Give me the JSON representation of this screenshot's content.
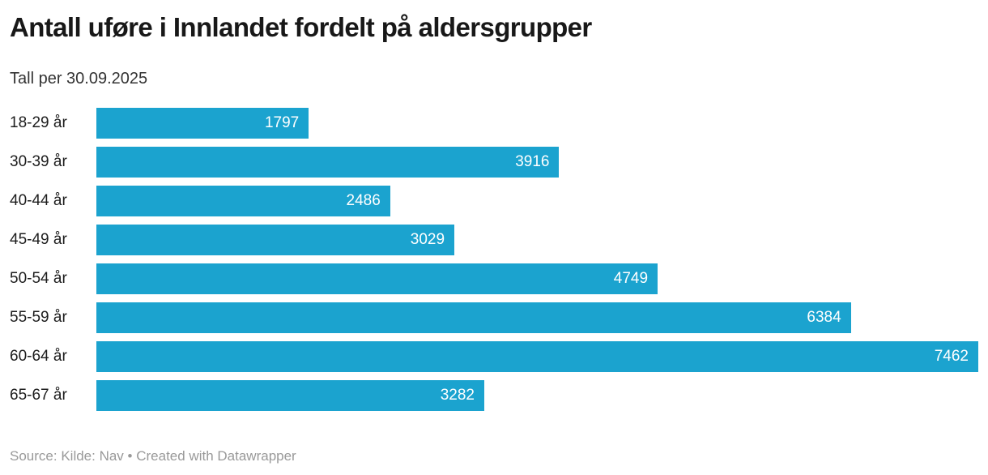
{
  "header": {
    "title": "Antall uføre i Innlandet fordelt på aldersgrupper",
    "subtitle": "Tall per 30.09.2025"
  },
  "chart_data": {
    "type": "bar",
    "orientation": "horizontal",
    "title": "Antall uføre i Innlandet fordelt på aldersgrupper",
    "subtitle": "Tall per 30.09.2025",
    "categories": [
      "18-29 år",
      "30-39 år",
      "40-44 år",
      "45-49 år",
      "50-54 år",
      "55-59 år",
      "60-64 år",
      "65-67 år"
    ],
    "values": [
      1797,
      3916,
      2486,
      3029,
      4749,
      6384,
      7462,
      3282
    ],
    "xlabel": "",
    "ylabel": "",
    "xlim": [
      0,
      7462
    ],
    "grid": false,
    "legend": false,
    "value_labels": "inside-end",
    "bar_color": "#1ba3cf",
    "value_label_color": "#ffffff"
  },
  "footer": {
    "source_label": "Source:",
    "source_text": "Kilde: Nav",
    "separator": "•",
    "attribution": "Created with Datawrapper"
  }
}
